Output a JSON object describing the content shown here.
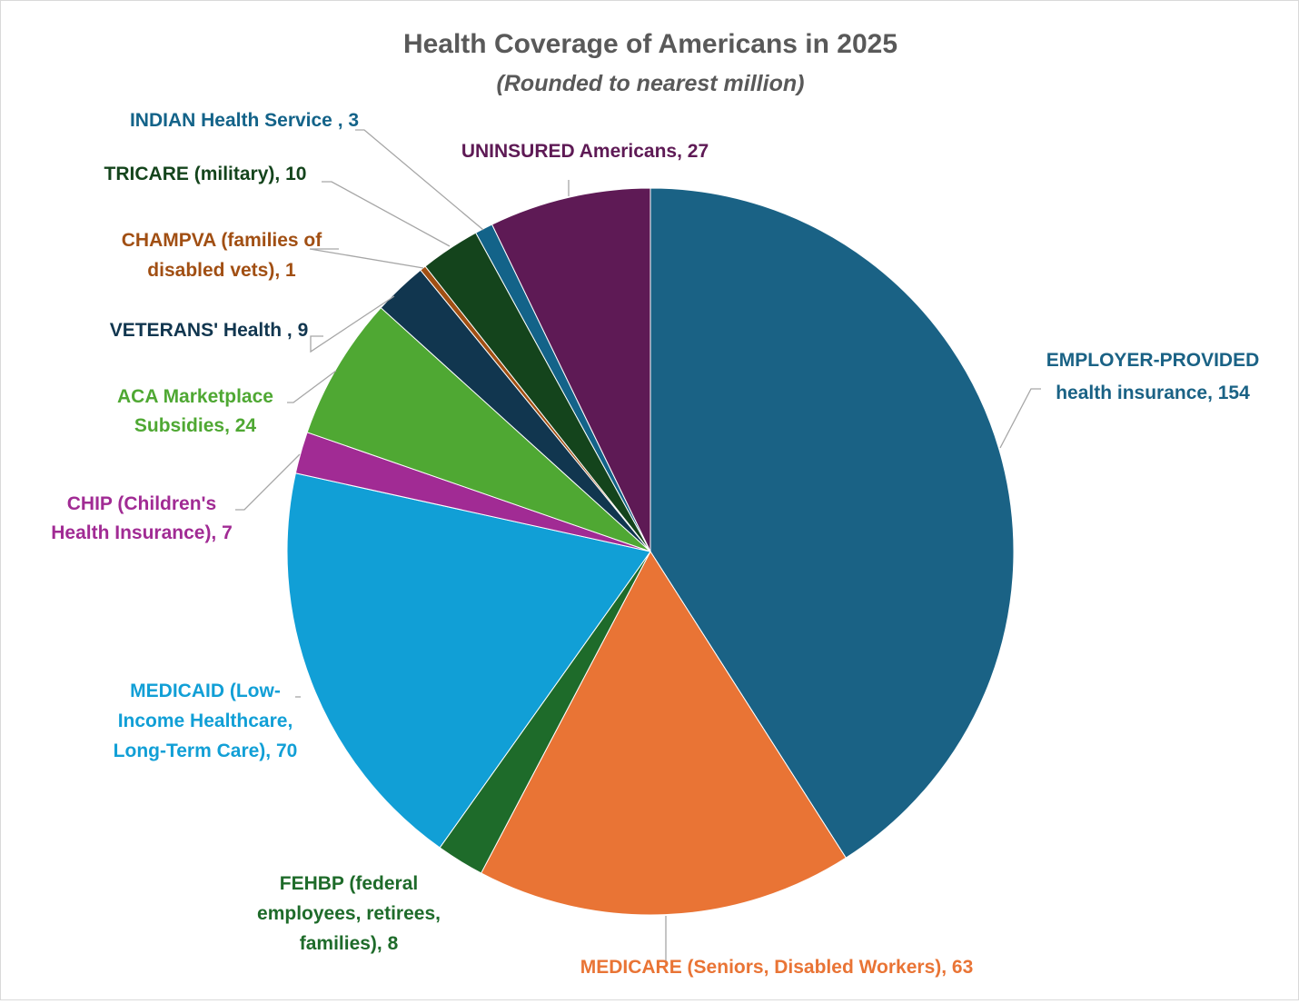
{
  "chart_data": {
    "type": "pie",
    "title": "Health Coverage of Americans in 2025",
    "subtitle": "(Rounded to nearest million)",
    "slices": [
      {
        "name": "EMPLOYER-PROVIDED health insurance",
        "value": 154,
        "color": "#1a6285",
        "label_lines": [
          "EMPLOYER-PROVIDED",
          "health insurance, 154"
        ]
      },
      {
        "name": "MEDICARE (Seniors, Disabled Workers)",
        "value": 63,
        "color": "#e97435",
        "label_lines": [
          "MEDICARE (Seniors, Disabled Workers), 63"
        ]
      },
      {
        "name": "FEHBP (federal employees, retirees, families)",
        "value": 8,
        "color": "#1e6b2a",
        "label_lines": [
          "FEHBP (federal",
          "employees, retirees,",
          "families), 8"
        ]
      },
      {
        "name": "MEDICAID (Low-Income Healthcare, Long-Term Care)",
        "value": 70,
        "color": "#119fd6",
        "label_lines": [
          "MEDICAID (Low-",
          "Income Healthcare,",
          "Long-Term Care), 70"
        ]
      },
      {
        "name": "CHIP (Children's Health Insurance)",
        "value": 7,
        "color": "#a12b94",
        "label_lines": [
          "CHIP (Children's",
          "Health Insurance), 7"
        ]
      },
      {
        "name": "ACA Marketplace Subsidies",
        "value": 24,
        "color": "#4fa833",
        "label_lines": [
          "ACA Marketplace",
          "Subsidies, 24"
        ]
      },
      {
        "name": "VETERANS' Health",
        "value": 9,
        "color": "#11364f",
        "label_lines": [
          "VETERANS' Health , 9"
        ]
      },
      {
        "name": "CHAMPVA (families of disabled vets)",
        "value": 1,
        "color": "#a14f13",
        "label_lines": [
          "CHAMPVA (families of",
          "disabled vets), 1"
        ]
      },
      {
        "name": "TRICARE (military)",
        "value": 10,
        "color": "#14441c",
        "label_lines": [
          "TRICARE (military), 10"
        ]
      },
      {
        "name": "INDIAN Health Service",
        "value": 3,
        "color": "#136389",
        "label_lines": [
          "INDIAN Health Service , 3"
        ]
      },
      {
        "name": "UNINSURED Americans",
        "value": 27,
        "color": "#5e1a55",
        "label_lines": [
          "UNINSURED Americans, 27"
        ]
      }
    ]
  }
}
